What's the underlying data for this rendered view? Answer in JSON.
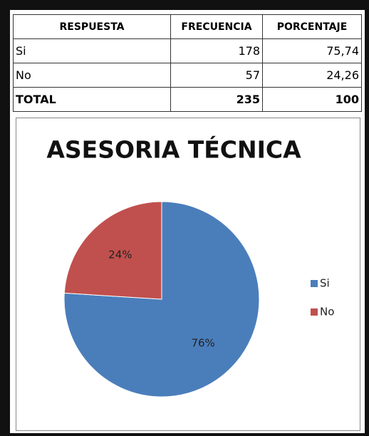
{
  "table": {
    "header": [
      "RESPUESTA",
      "FRECUENCIA",
      "PORCENTAJE"
    ],
    "rows": [
      [
        "Si",
        "178",
        "75,74"
      ],
      [
        "No",
        "57",
        "24,26"
      ],
      [
        "TOTAL",
        "235",
        "100"
      ]
    ]
  },
  "chart_data": {
    "type": "pie",
    "title": "ASESORIA TÉCNICA",
    "categories": [
      "Si",
      "No"
    ],
    "values": [
      76,
      24
    ],
    "value_labels": [
      "76%",
      "24%"
    ],
    "colors": [
      "#4a7ebb",
      "#c0504d"
    ],
    "legend": "right"
  }
}
